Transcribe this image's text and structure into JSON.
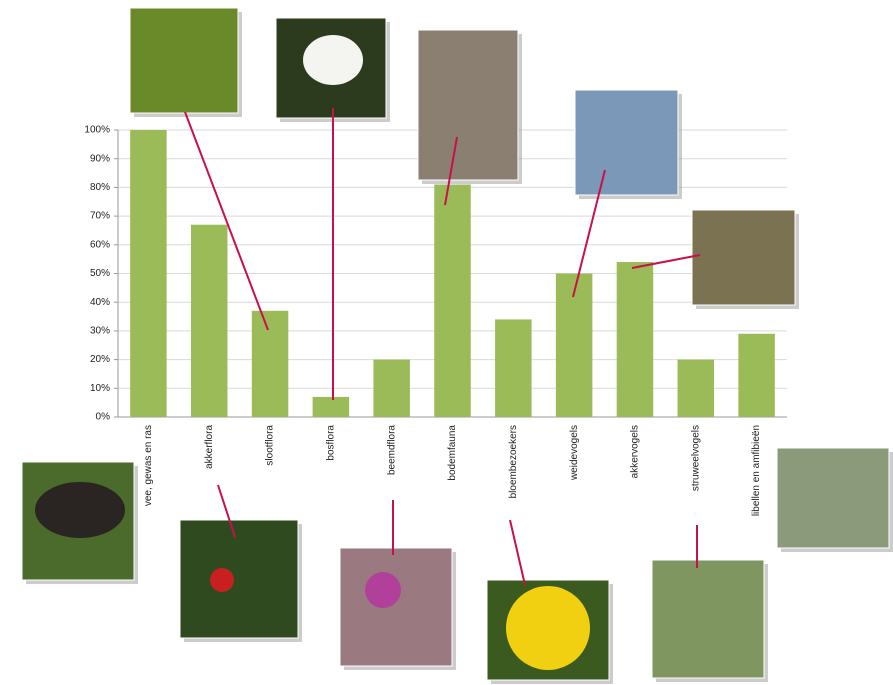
{
  "chart_data": {
    "type": "bar",
    "categories": [
      "vee, gewas en ras",
      "akkerflora",
      "slootflora",
      "bosflora",
      "beemdflora",
      "bodemfauna",
      "bloembezoekers",
      "weidevogels",
      "akkervogels",
      "struweelvogels",
      "libellen en amfibieën"
    ],
    "values": [
      100,
      67,
      37,
      7,
      20,
      81,
      34,
      50,
      54,
      20,
      29
    ],
    "color": "#9bbb59",
    "ylim": [
      0,
      100
    ],
    "yticks": [
      {
        "value": 0,
        "label": "0%"
      },
      {
        "value": 10,
        "label": "10%"
      },
      {
        "value": 20,
        "label": "20%"
      },
      {
        "value": 30,
        "label": "30%"
      },
      {
        "value": 40,
        "label": "40%"
      },
      {
        "value": 50,
        "label": "50%"
      },
      {
        "value": 60,
        "label": "60%"
      },
      {
        "value": 70,
        "label": "70%"
      },
      {
        "value": 80,
        "label": "80%"
      },
      {
        "value": 90,
        "label": "90%"
      },
      {
        "value": 100,
        "label": "100%"
      }
    ],
    "grid": true
  }
}
